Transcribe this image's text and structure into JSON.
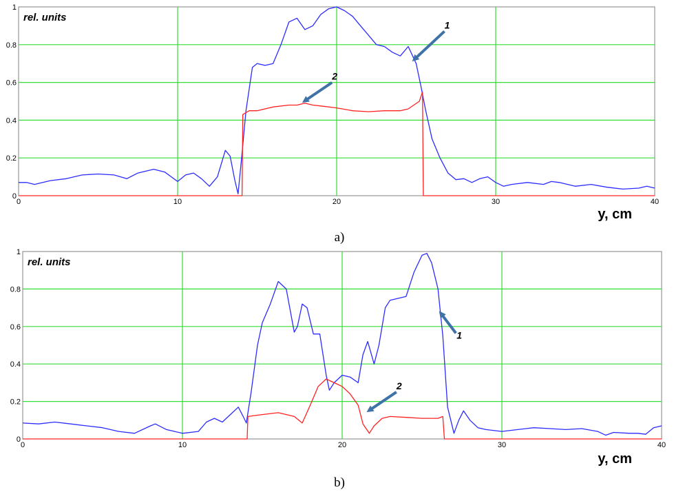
{
  "chart_data": [
    {
      "type": "line",
      "caption": "a)",
      "ylabel": "rel. units",
      "xlabel": "y, cm",
      "xlim": [
        0,
        40
      ],
      "ylim": [
        0,
        1
      ],
      "x_ticks": [
        0,
        10,
        20,
        30,
        40
      ],
      "y_ticks": [
        0,
        0.2,
        0.4,
        0.6,
        0.8,
        1
      ],
      "y_tick_labels": [
        "0",
        "0.2",
        "0.4",
        "0.6",
        "0.8",
        "1"
      ],
      "grid": true,
      "annotations": [
        {
          "label": "1",
          "series": 0,
          "arrow_to": [
            24.7,
            0.71
          ]
        },
        {
          "label": "2",
          "series": 1,
          "arrow_to": [
            17.8,
            0.49
          ]
        }
      ],
      "series": [
        {
          "color": "#2b2bff",
          "points": [
            [
              0,
              0.07
            ],
            [
              0.5,
              0.07
            ],
            [
              1,
              0.06
            ],
            [
              2,
              0.08
            ],
            [
              3,
              0.09
            ],
            [
              4,
              0.11
            ],
            [
              5,
              0.115
            ],
            [
              6,
              0.11
            ],
            [
              6.8,
              0.09
            ],
            [
              7.5,
              0.12
            ],
            [
              8.5,
              0.14
            ],
            [
              9.2,
              0.125
            ],
            [
              10,
              0.075
            ],
            [
              10.5,
              0.11
            ],
            [
              11,
              0.12
            ],
            [
              11.5,
              0.09
            ],
            [
              12,
              0.05
            ],
            [
              12.5,
              0.1
            ],
            [
              13,
              0.24
            ],
            [
              13.3,
              0.21
            ],
            [
              13.6,
              0.08
            ],
            [
              13.8,
              0.01
            ],
            [
              14,
              0.18
            ],
            [
              14.3,
              0.45
            ],
            [
              14.7,
              0.68
            ],
            [
              15,
              0.7
            ],
            [
              15.5,
              0.69
            ],
            [
              16,
              0.7
            ],
            [
              16.5,
              0.8
            ],
            [
              17,
              0.92
            ],
            [
              17.5,
              0.94
            ],
            [
              18,
              0.88
            ],
            [
              18.5,
              0.9
            ],
            [
              19,
              0.96
            ],
            [
              19.5,
              0.99
            ],
            [
              20,
              1.0
            ],
            [
              20.5,
              0.98
            ],
            [
              21,
              0.95
            ],
            [
              21.5,
              0.9
            ],
            [
              22,
              0.85
            ],
            [
              22.5,
              0.8
            ],
            [
              23,
              0.79
            ],
            [
              23.5,
              0.76
            ],
            [
              24,
              0.74
            ],
            [
              24.5,
              0.79
            ],
            [
              25,
              0.7
            ],
            [
              25.3,
              0.58
            ],
            [
              25.6,
              0.45
            ],
            [
              26,
              0.3
            ],
            [
              26.5,
              0.2
            ],
            [
              27,
              0.12
            ],
            [
              27.5,
              0.085
            ],
            [
              28,
              0.09
            ],
            [
              28.5,
              0.07
            ],
            [
              29,
              0.09
            ],
            [
              29.5,
              0.1
            ],
            [
              30,
              0.07
            ],
            [
              30.5,
              0.05
            ],
            [
              31,
              0.06
            ],
            [
              32,
              0.07
            ],
            [
              33,
              0.06
            ],
            [
              33.5,
              0.075
            ],
            [
              34,
              0.07
            ],
            [
              35,
              0.05
            ],
            [
              36,
              0.06
            ],
            [
              37,
              0.045
            ],
            [
              38,
              0.035
            ],
            [
              39,
              0.04
            ],
            [
              39.5,
              0.05
            ],
            [
              40,
              0.04
            ]
          ]
        },
        {
          "color": "#ff2020",
          "points": [
            [
              0,
              0
            ],
            [
              14.05,
              0
            ],
            [
              14.1,
              0.43
            ],
            [
              14.5,
              0.45
            ],
            [
              15,
              0.45
            ],
            [
              16,
              0.47
            ],
            [
              17,
              0.48
            ],
            [
              17.5,
              0.48
            ],
            [
              18,
              0.49
            ],
            [
              18.5,
              0.48
            ],
            [
              19,
              0.475
            ],
            [
              20,
              0.465
            ],
            [
              21,
              0.45
            ],
            [
              22,
              0.445
            ],
            [
              23,
              0.45
            ],
            [
              24,
              0.45
            ],
            [
              24.5,
              0.46
            ],
            [
              25.2,
              0.5
            ],
            [
              25.4,
              0.55
            ],
            [
              25.45,
              0
            ],
            [
              40,
              0
            ]
          ]
        }
      ]
    },
    {
      "type": "line",
      "caption": "b)",
      "ylabel": "rel. units",
      "xlabel": "y, cm",
      "xlim": [
        0,
        40
      ],
      "ylim": [
        0,
        1
      ],
      "x_ticks": [
        0,
        10,
        20,
        30,
        40
      ],
      "y_ticks": [
        0,
        0.2,
        0.4,
        0.6,
        0.8,
        1
      ],
      "y_tick_labels": [
        "0",
        "0.2",
        "0.4",
        "0.6",
        "0.8",
        "1"
      ],
      "grid": true,
      "annotations": [
        {
          "label": "1",
          "series": 0,
          "arrow_to": [
            26.0,
            0.66
          ]
        },
        {
          "label": "2",
          "series": 1,
          "arrow_to": [
            21.5,
            0.14
          ]
        }
      ],
      "series": [
        {
          "color": "#2b2bff",
          "points": [
            [
              0,
              0.085
            ],
            [
              1,
              0.08
            ],
            [
              2,
              0.09
            ],
            [
              3,
              0.08
            ],
            [
              4,
              0.07
            ],
            [
              5,
              0.06
            ],
            [
              6,
              0.04
            ],
            [
              7,
              0.03
            ],
            [
              8,
              0.07
            ],
            [
              8.3,
              0.08
            ],
            [
              9,
              0.05
            ],
            [
              10,
              0.03
            ],
            [
              11,
              0.04
            ],
            [
              11.5,
              0.09
            ],
            [
              12,
              0.11
            ],
            [
              12.5,
              0.09
            ],
            [
              13,
              0.13
            ],
            [
              13.5,
              0.17
            ],
            [
              13.8,
              0.12
            ],
            [
              14,
              0.085
            ],
            [
              14.3,
              0.25
            ],
            [
              14.7,
              0.5
            ],
            [
              15,
              0.62
            ],
            [
              15.5,
              0.72
            ],
            [
              16,
              0.84
            ],
            [
              16.5,
              0.8
            ],
            [
              17,
              0.57
            ],
            [
              17.2,
              0.6
            ],
            [
              17.5,
              0.72
            ],
            [
              17.8,
              0.7
            ],
            [
              18.2,
              0.56
            ],
            [
              18.6,
              0.56
            ],
            [
              19,
              0.34
            ],
            [
              19.2,
              0.26
            ],
            [
              19.5,
              0.3
            ],
            [
              20,
              0.34
            ],
            [
              20.5,
              0.33
            ],
            [
              21,
              0.3
            ],
            [
              21.3,
              0.45
            ],
            [
              21.6,
              0.52
            ],
            [
              22,
              0.4
            ],
            [
              22.3,
              0.5
            ],
            [
              22.7,
              0.7
            ],
            [
              23,
              0.74
            ],
            [
              24,
              0.76
            ],
            [
              24.5,
              0.89
            ],
            [
              25,
              0.98
            ],
            [
              25.3,
              0.99
            ],
            [
              25.6,
              0.94
            ],
            [
              26,
              0.8
            ],
            [
              26.3,
              0.55
            ],
            [
              26.6,
              0.17
            ],
            [
              27,
              0.03
            ],
            [
              27.3,
              0.1
            ],
            [
              27.6,
              0.15
            ],
            [
              28,
              0.1
            ],
            [
              28.5,
              0.06
            ],
            [
              29,
              0.05
            ],
            [
              30,
              0.04
            ],
            [
              31,
              0.05
            ],
            [
              32,
              0.06
            ],
            [
              33,
              0.055
            ],
            [
              34,
              0.05
            ],
            [
              35,
              0.055
            ],
            [
              36,
              0.04
            ],
            [
              36.5,
              0.02
            ],
            [
              37,
              0.035
            ],
            [
              38,
              0.03
            ],
            [
              38.5,
              0.03
            ],
            [
              39,
              0.025
            ],
            [
              39.5,
              0.06
            ],
            [
              40,
              0.07
            ]
          ]
        },
        {
          "color": "#ff2020",
          "points": [
            [
              0,
              0
            ],
            [
              14.05,
              0
            ],
            [
              14.1,
              0.12
            ],
            [
              15,
              0.13
            ],
            [
              16,
              0.14
            ],
            [
              17,
              0.12
            ],
            [
              17.5,
              0.085
            ],
            [
              18,
              0.18
            ],
            [
              18.5,
              0.28
            ],
            [
              19,
              0.32
            ],
            [
              19.5,
              0.3
            ],
            [
              20,
              0.28
            ],
            [
              20.5,
              0.24
            ],
            [
              21,
              0.18
            ],
            [
              21.3,
              0.08
            ],
            [
              21.7,
              0.03
            ],
            [
              22,
              0.07
            ],
            [
              22.5,
              0.11
            ],
            [
              23,
              0.12
            ],
            [
              24,
              0.115
            ],
            [
              25,
              0.11
            ],
            [
              26,
              0.11
            ],
            [
              26.3,
              0.12
            ],
            [
              26.4,
              0
            ],
            [
              40,
              0
            ]
          ]
        }
      ]
    }
  ]
}
